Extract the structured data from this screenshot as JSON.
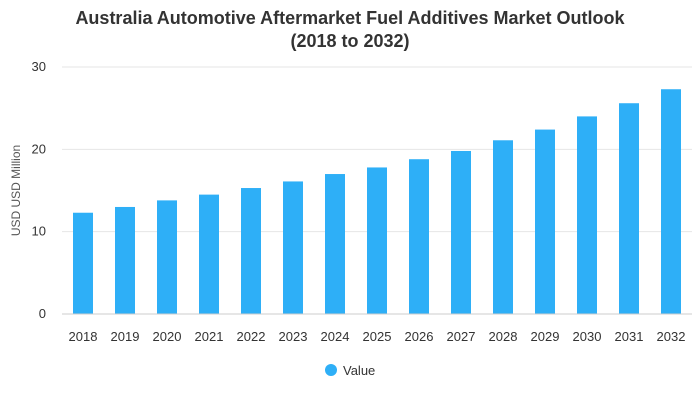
{
  "title_line1": "Australia Automotive Aftermarket Fuel Additives Market Outlook",
  "title_line2": "(2018 to 2032)",
  "colors": {
    "bar": "#2eaff7",
    "grid": "#e6e6e6",
    "baseline": "#cccccc"
  },
  "chart_data": {
    "type": "bar",
    "title": "Australia Automotive Aftermarket Fuel Additives Market Outlook (2018 to 2032)",
    "xlabel": "",
    "ylabel": "USD USD Million",
    "ylim": [
      0,
      30
    ],
    "yticks": [
      0,
      10,
      20,
      30
    ],
    "grid": true,
    "legend_position": "bottom",
    "categories": [
      "2018",
      "2019",
      "2020",
      "2021",
      "2022",
      "2023",
      "2024",
      "2025",
      "2026",
      "2027",
      "2028",
      "2029",
      "2030",
      "2031",
      "2032"
    ],
    "series": [
      {
        "name": "Value",
        "values": [
          12.3,
          13.0,
          13.8,
          14.5,
          15.3,
          16.1,
          17.0,
          17.8,
          18.8,
          19.8,
          21.1,
          22.4,
          24.0,
          25.6,
          27.3
        ]
      }
    ]
  }
}
